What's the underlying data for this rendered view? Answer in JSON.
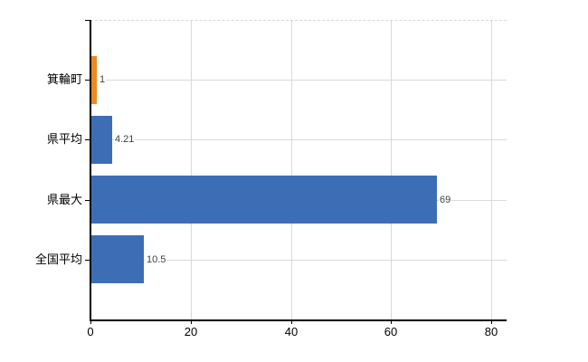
{
  "chart_data": {
    "type": "bar",
    "orientation": "horizontal",
    "categories": [
      "箕輪町",
      "県平均",
      "県最大",
      "全国平均"
    ],
    "values": [
      1,
      4.21,
      69,
      10.5
    ],
    "value_labels": [
      "1",
      "4.21",
      "69",
      "10.5"
    ],
    "bar_colors": [
      "#ED8A1E",
      "#3D6EB5",
      "#3D6EB5",
      "#3D6EB5"
    ],
    "xtick_labels": [
      "0",
      "20",
      "40",
      "60",
      "80"
    ],
    "xtick_values": [
      0,
      20,
      40,
      60,
      80
    ],
    "xlim": [
      0,
      83
    ],
    "grid": true,
    "legend_position": "none",
    "colors": {
      "background": "#ffffff",
      "axis": "#000000",
      "vertical_gridline": "#d9d9d9",
      "horizontal_gridline": "#d9dcd9",
      "value_label_text": "#404040",
      "tick_label_text": "#000000",
      "orange_bar": "#ED8A1E",
      "blue_bar": "#3D6EB5"
    }
  }
}
